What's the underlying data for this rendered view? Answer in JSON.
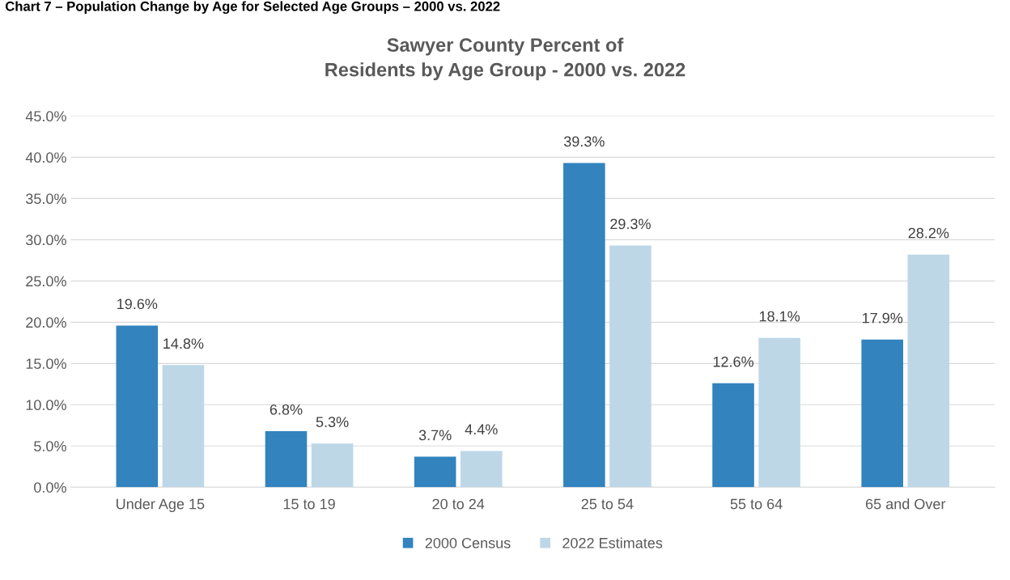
{
  "chart_data": {
    "type": "bar",
    "title": "Sawyer County Percent of\nResidents by Age Group - 2000 vs. 2022",
    "annotations": [
      "Chart 7 – Population Change by Age for Selected Age Groups – 2000 vs. 2022"
    ],
    "categories": [
      "Under Age 15",
      "15 to 19",
      "20 to 24",
      "25 to 54",
      "55 to 64",
      "65 and Over"
    ],
    "series": [
      {
        "name": "2000 Census",
        "color": "#3283be",
        "values": [
          19.6,
          6.8,
          3.7,
          39.3,
          12.6,
          17.9
        ]
      },
      {
        "name": "2022 Estimates",
        "color": "#bdd7e7",
        "values": [
          14.8,
          5.3,
          4.4,
          29.3,
          18.1,
          28.2
        ]
      }
    ],
    "ylim": [
      0,
      45
    ],
    "yticks": [
      {
        "value": 0,
        "label": "0.0%"
      },
      {
        "value": 5,
        "label": "5.0%"
      },
      {
        "value": 10,
        "label": "10.0%"
      },
      {
        "value": 15,
        "label": "15.0%"
      },
      {
        "value": 20,
        "label": "20.0%"
      },
      {
        "value": 25,
        "label": "25.0%"
      },
      {
        "value": 30,
        "label": "30.0%"
      },
      {
        "value": 35,
        "label": "35.0%"
      },
      {
        "value": 40,
        "label": "40.0%"
      },
      {
        "value": 45,
        "label": "45.0%"
      }
    ],
    "value_labels": [
      [
        "19.6%",
        "6.8%",
        "3.7%",
        "39.3%",
        "12.6%",
        "17.9%"
      ],
      [
        "14.8%",
        "5.3%",
        "4.4%",
        "29.3%",
        "18.1%",
        "28.2%"
      ]
    ],
    "grid": "y",
    "legend": "bottom"
  }
}
